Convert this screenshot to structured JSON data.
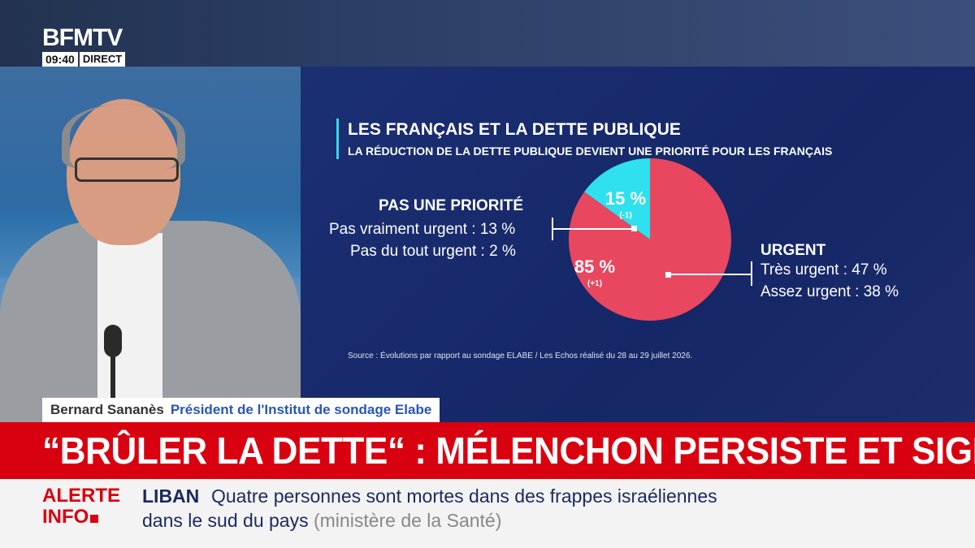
{
  "channel": {
    "logo": "BFMTV",
    "time": "09:40",
    "live_label": "DIRECT"
  },
  "chart": {
    "title": "LES FRANÇAIS ET LA DETTE PUBLIQUE",
    "subtitle": "LA RÉDUCTION DE LA DETTE PUBLIQUE DEVIENT UNE PRIORITÉ POUR LES FRANÇAIS",
    "left_group_title": "PAS UNE PRIORITÉ",
    "left_items": [
      "Pas vraiment urgent : 13 %",
      "Pas du tout urgent : 2 %"
    ],
    "right_group_title": "URGENT",
    "right_items": [
      "Très urgent : 47 %",
      "Assez urgent : 38 %"
    ],
    "source": "Source : Évolutions par rapport au sondage ELABE / Les Echos réalisé du 28 au 29 juillet 2026."
  },
  "chart_data": {
    "type": "pie",
    "title": "LES FRANÇAIS ET LA DETTE PUBLIQUE",
    "subtitle": "LA RÉDUCTION DE LA DETTE PUBLIQUE DEVIENT UNE PRIORITÉ POUR LES FRANÇAIS",
    "slices": [
      {
        "label": "PAS UNE PRIORITÉ",
        "value": 15,
        "value_label": "15 %",
        "change": "(-1)",
        "color": "#2fe0ee"
      },
      {
        "label": "URGENT",
        "value": 85,
        "value_label": "85 %",
        "change": "(+1)",
        "color": "#e8475f"
      }
    ],
    "breakdown": {
      "PAS UNE PRIORITÉ": [
        {
          "label": "Pas vraiment urgent",
          "value": 13
        },
        {
          "label": "Pas du tout urgent",
          "value": 2
        }
      ],
      "URGENT": [
        {
          "label": "Très urgent",
          "value": 47
        },
        {
          "label": "Assez urgent",
          "value": 38
        }
      ]
    }
  },
  "guest": {
    "name": "Bernard Sananès",
    "role": "Président de l'Institut de sondage Elabe"
  },
  "headline": "“BRÛLER LA DETTE“ : MÉLENCHON PERSISTE ET SIGNE",
  "ticker": {
    "alert_label_line1": "ALERTE",
    "alert_label_line2": "INFO",
    "topic": "LIBAN",
    "text_line1": "Quatre personnes sont mortes dans des frappes israéliennes",
    "text_line2": "dans le sud du pays",
    "source": "(ministère de la Santé)"
  },
  "colors": {
    "urgent": "#e8475f",
    "not_priority": "#2fe0ee",
    "alert_red": "#d9000f",
    "graphic_bg": "#1b2f73"
  }
}
